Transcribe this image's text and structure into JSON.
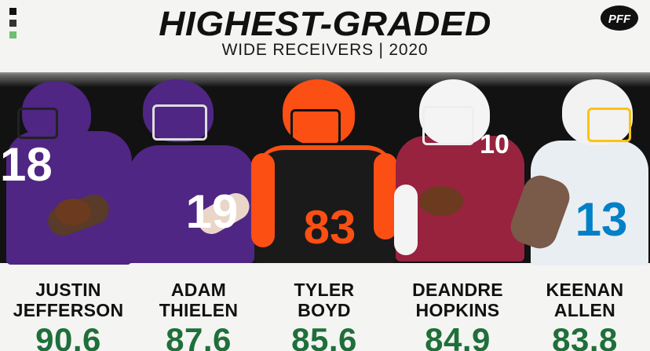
{
  "header": {
    "title": "HIGHEST-GRADED",
    "subtitle": "WIDE RECEIVERS | 2020",
    "logo_text": "PFF"
  },
  "colors": {
    "grade_green": "#1f6f3a",
    "square_1": "#111111",
    "square_2": "#333333",
    "square_3": "#6fbf73"
  },
  "players": [
    {
      "first": "JUSTIN",
      "last": "JEFFERSON",
      "grade": "90.6",
      "jersey_number": "18",
      "team_color": "#4f2683"
    },
    {
      "first": "ADAM",
      "last": "THIELEN",
      "grade": "87.6",
      "jersey_number": "19",
      "team_color": "#4f2683"
    },
    {
      "first": "TYLER",
      "last": "BOYD",
      "grade": "85.6",
      "jersey_number": "83",
      "team_color": "#111111"
    },
    {
      "first": "DEANDRE",
      "last": "HOPKINS",
      "grade": "84.9",
      "jersey_number": "10",
      "team_color": "#97233f"
    },
    {
      "first": "KEENAN",
      "last": "ALLEN",
      "grade": "83.8",
      "jersey_number": "13",
      "team_color": "#e9eef3"
    }
  ]
}
